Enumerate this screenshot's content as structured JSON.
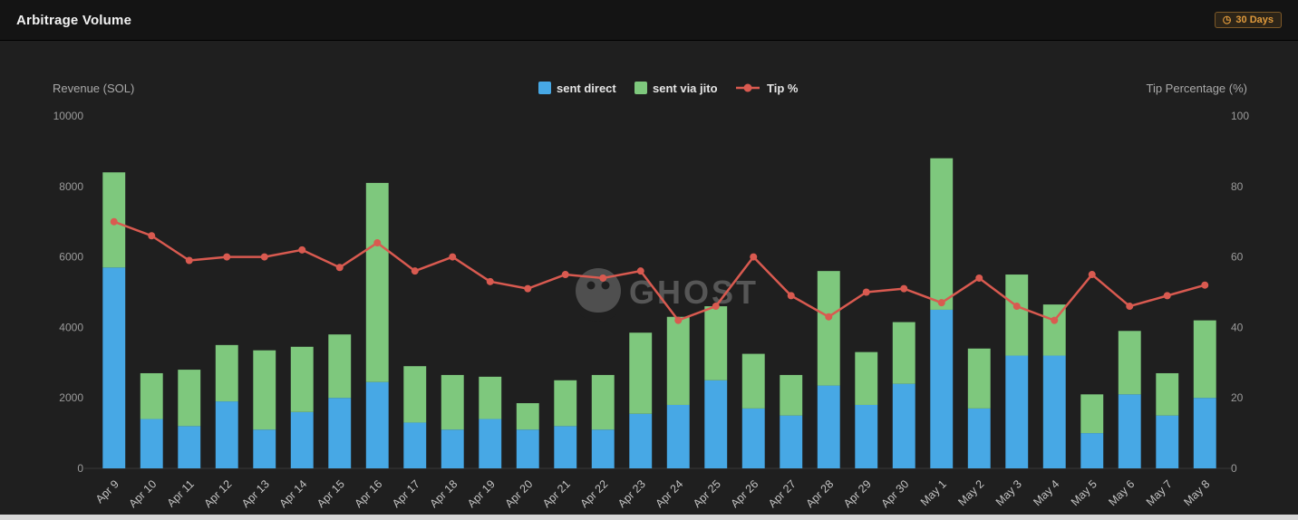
{
  "header": {
    "title": "Arbitrage Volume",
    "badge_label": "30 Days"
  },
  "watermark": {
    "text": "GHOST"
  },
  "colors": {
    "background": "#1f1f1f",
    "header_bg": "#141414",
    "blue": "#47a8e5",
    "green": "#7ec87d",
    "red": "#d95a50",
    "accent_orange": "#e09a3c",
    "tick_text": "#9b9b9b",
    "label_text": "#c2c2c2"
  },
  "chart_data": {
    "type": "bar",
    "subtype": "stacked-bar-with-line",
    "title": "Arbitrage Volume",
    "stacked": true,
    "grid": false,
    "legend_position": "top-center",
    "categories": [
      "Apr 9",
      "Apr 10",
      "Apr 11",
      "Apr 12",
      "Apr 13",
      "Apr 14",
      "Apr 15",
      "Apr 16",
      "Apr 17",
      "Apr 18",
      "Apr 19",
      "Apr 20",
      "Apr 21",
      "Apr 22",
      "Apr 23",
      "Apr 24",
      "Apr 25",
      "Apr 26",
      "Apr 27",
      "Apr 28",
      "Apr 29",
      "Apr 30",
      "May 1",
      "May 2",
      "May 3",
      "May 4",
      "May 5",
      "May 6",
      "May 7",
      "May 8"
    ],
    "series": [
      {
        "name": "sent direct",
        "type": "bar",
        "axis": "left",
        "color": "#47a8e5",
        "values": [
          5700,
          1400,
          1200,
          1900,
          1100,
          1600,
          2000,
          2450,
          1300,
          1100,
          1400,
          1100,
          1200,
          1100,
          1550,
          1800,
          2500,
          1700,
          1500,
          2350,
          1800,
          2400,
          4500,
          1700,
          3200,
          3200,
          1000,
          2100,
          1500,
          2000
        ]
      },
      {
        "name": "sent via jito",
        "type": "bar",
        "axis": "left",
        "color": "#7ec87d",
        "values": [
          2700,
          1300,
          1600,
          1600,
          2250,
          1850,
          1800,
          5650,
          1600,
          1550,
          1200,
          750,
          1300,
          1550,
          2300,
          2500,
          2100,
          1550,
          1150,
          3250,
          1500,
          1750,
          4300,
          1700,
          2300,
          1450,
          1100,
          1800,
          1200,
          2200
        ]
      },
      {
        "name": "Tip %",
        "type": "line",
        "axis": "right",
        "color": "#d95a50",
        "values": [
          70,
          66,
          59,
          60,
          60,
          62,
          57,
          64,
          56,
          60,
          53,
          51,
          55,
          54,
          56,
          42,
          46,
          60,
          49,
          43,
          50,
          51,
          47,
          54,
          46,
          42,
          55,
          46,
          49,
          52
        ]
      }
    ],
    "y_left": {
      "label": "Revenue (SOL)",
      "min": 0,
      "max": 10000,
      "ticks": [
        0,
        2000,
        4000,
        6000,
        8000,
        10000
      ]
    },
    "y_right": {
      "label": "Tip Percentage (%)",
      "min": 0,
      "max": 100,
      "ticks": [
        0,
        20,
        40,
        60,
        80,
        100
      ]
    }
  }
}
